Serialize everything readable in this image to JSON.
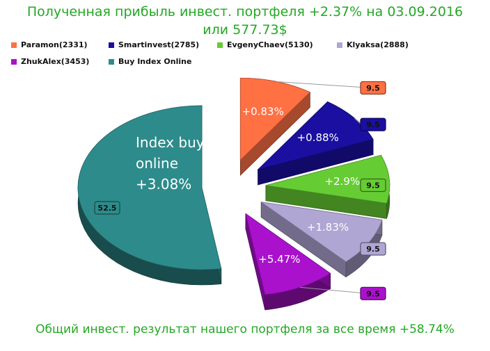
{
  "title_line1": "Полученная прибыль инвест. портфеля +2.37% на 03.09.2016",
  "title_line2": "или 577.73$",
  "footer": "Общий инвест. результат нашего портфеля за все время +58.74%",
  "chart_data": {
    "type": "pie",
    "style": "3d-exploded",
    "legend_position": "top",
    "series": [
      {
        "name": "Paramon(2331)",
        "value": 9.5,
        "label": "+0.83%",
        "color": "#ff7043"
      },
      {
        "name": "Smartinvest(2785)",
        "value": 9.5,
        "label": "+0.88%",
        "color": "#1a0fa0"
      },
      {
        "name": "EvgenyChaev(5130)",
        "value": 9.5,
        "label": "+2.9%",
        "color": "#66cc33"
      },
      {
        "name": "Klyaksa(2888)",
        "value": 9.5,
        "label": "+1.83%",
        "color": "#b0a6d4"
      },
      {
        "name": "ZhukAlex(3453)",
        "value": 9.5,
        "label": "+5.47%",
        "color": "#aa11cc"
      },
      {
        "name": "Buy Index Online",
        "value": 52.5,
        "label": "Index buy online +3.08%",
        "color": "#2e8b8b"
      }
    ]
  }
}
